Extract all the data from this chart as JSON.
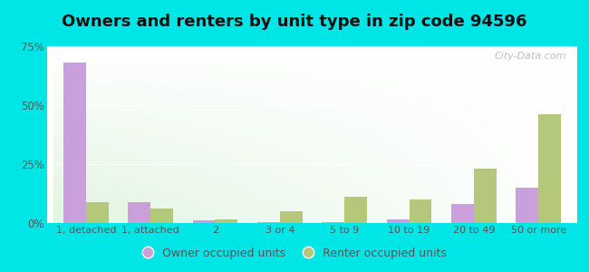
{
  "title": "Owners and renters by unit type in zip code 94596",
  "categories": [
    "1, detached",
    "1, attached",
    "2",
    "3 or 4",
    "5 to 9",
    "10 to 19",
    "20 to 49",
    "50 or more"
  ],
  "owner_values": [
    68,
    9,
    1.0,
    0.5,
    0.5,
    1.5,
    8,
    15
  ],
  "renter_values": [
    9,
    6,
    1.5,
    5,
    11,
    10,
    23,
    46
  ],
  "owner_color": "#c9a0dc",
  "renter_color": "#b5c77a",
  "ylim": [
    0,
    75
  ],
  "yticks": [
    0,
    25,
    50,
    75
  ],
  "ytick_labels": [
    "0%",
    "25%",
    "50%",
    "75%"
  ],
  "background_outer": "#00e5e5",
  "legend_owner": "Owner occupied units",
  "legend_renter": "Renter occupied units",
  "watermark": "City-Data.com",
  "bar_width": 0.35,
  "title_fontsize": 13
}
